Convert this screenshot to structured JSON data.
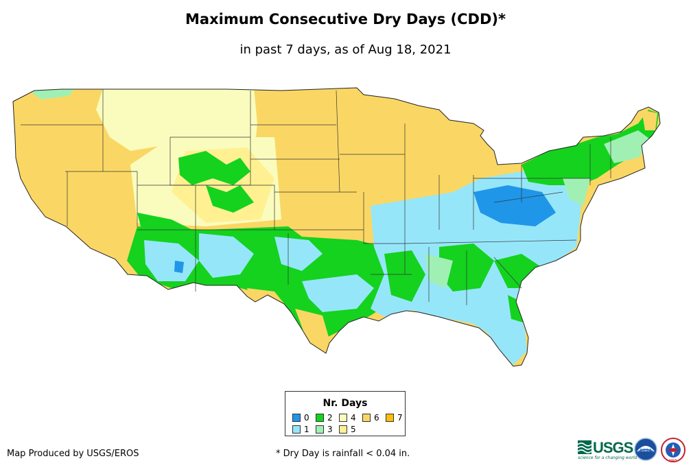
{
  "title": "Maximum Consecutive Dry Days (CDD)*",
  "subtitle": "in past 7 days, as of Aug 18, 2021",
  "legend": {
    "title": "Nr. Days",
    "items": [
      {
        "label": "0",
        "color": "#1f96e8"
      },
      {
        "label": "1",
        "color": "#96e6fa"
      },
      {
        "label": "2",
        "color": "#14d21e"
      },
      {
        "label": "3",
        "color": "#a0f0b4"
      },
      {
        "label": "4",
        "color": "#fafcbe"
      },
      {
        "label": "5",
        "color": "#fff092"
      },
      {
        "label": "6",
        "color": "#fad764"
      },
      {
        "label": "7",
        "color": "#ffbe0a"
      }
    ]
  },
  "footer": {
    "producer": "Map Produced by USGS/EROS",
    "note": "* Dry Day is rainfall < 0.04 in."
  },
  "logos": {
    "usgs_text": "USGS",
    "usgs_tagline": "science for a changing world",
    "noaa_text": "noaa",
    "nws_text": "NWS"
  },
  "map_data": {
    "region": "Contiguous United States",
    "dominant_categories": [
      {
        "area": "West Coast, Great Basin, Northern Plains, Upper Midwest",
        "days": "6"
      },
      {
        "area": "Montana, Wyoming, Idaho",
        "days": "4"
      },
      {
        "area": "Southwest, Texas, Oklahoma",
        "days": "1-2"
      },
      {
        "area": "Southeast, Ohio Valley, Mid-Atlantic",
        "days": "0-2"
      },
      {
        "area": "Northeast",
        "days": "2-3"
      }
    ]
  }
}
